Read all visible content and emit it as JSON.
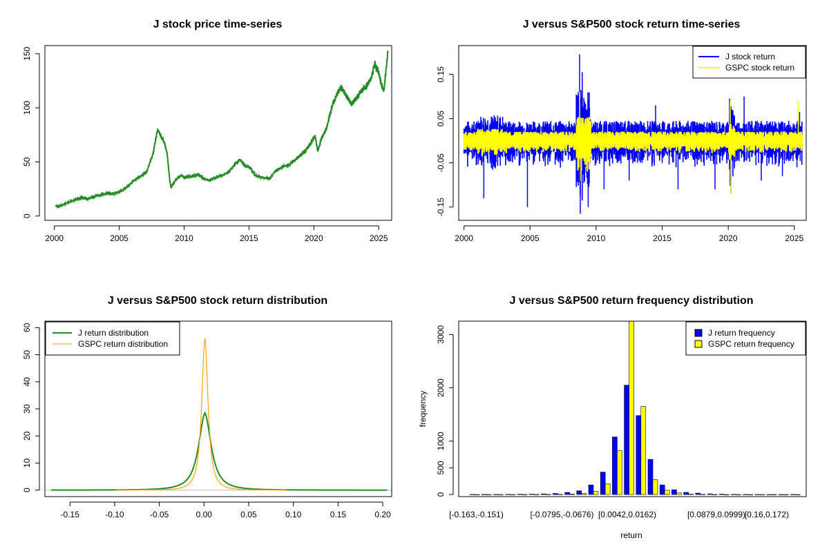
{
  "chart_data": [
    {
      "id": "p1",
      "type": "line",
      "title": "J stock price time-series",
      "xlabel": "",
      "ylabel": "",
      "xlim": [
        1999.6,
        2025.9
      ],
      "ylim": [
        -2,
        157
      ],
      "x_ticks": [
        2000,
        2005,
        2010,
        2015,
        2020,
        2025
      ],
      "y_ticks": [
        0,
        50,
        100,
        150
      ],
      "y_tick_orientation": "rotated",
      "color": "#228B22",
      "series": [
        {
          "x": [
            2000.0,
            2000.5,
            2001.0,
            2001.5,
            2002.0,
            2002.5,
            2003.0,
            2003.5,
            2004.0,
            2004.5,
            2005.0,
            2005.5,
            2006.0,
            2006.5,
            2007.0,
            2007.5,
            2007.85,
            2008.1,
            2008.4,
            2008.6,
            2008.8,
            2008.9,
            2009.2,
            2009.6,
            2010.0,
            2010.5,
            2011.0,
            2011.4,
            2011.8,
            2012.3,
            2012.8,
            2013.3,
            2013.8,
            2014.2,
            2014.6,
            2015.0,
            2015.4,
            2015.9,
            2016.5,
            2017.0,
            2017.5,
            2018.0,
            2018.5,
            2019.0,
            2019.5,
            2020.0,
            2020.2,
            2020.5,
            2020.9,
            2021.3,
            2021.7,
            2022.0,
            2022.4,
            2022.8,
            2023.2,
            2023.6,
            2024.0,
            2024.3,
            2024.6,
            2024.9,
            2025.1,
            2025.3,
            2025.6
          ],
          "values": [
            6,
            7,
            10,
            12,
            14,
            13,
            15,
            17,
            18,
            18,
            20,
            24,
            30,
            34,
            38,
            55,
            78,
            72,
            65,
            55,
            30,
            24,
            30,
            35,
            33,
            34,
            36,
            32,
            30,
            33,
            35,
            38,
            45,
            50,
            44,
            42,
            35,
            33,
            32,
            40,
            43,
            45,
            50,
            55,
            62,
            72,
            58,
            70,
            80,
            100,
            112,
            118,
            110,
            102,
            108,
            115,
            120,
            125,
            140,
            132,
            120,
            115,
            150
          ]
        }
      ]
    },
    {
      "id": "p2",
      "type": "line",
      "title": "J versus S&P500 stock return time-series",
      "xlabel": "",
      "ylabel": "",
      "xlim": [
        1999.6,
        2025.9
      ],
      "ylim": [
        -0.18,
        0.215
      ],
      "x_ticks": [
        2000,
        2005,
        2010,
        2015,
        2020,
        2025
      ],
      "y_ticks": [
        -0.15,
        -0.05,
        0.05,
        0.15
      ],
      "y_tick_labels": [
        "-0.15",
        "-0.05",
        "0.05",
        "0.15"
      ],
      "legend": {
        "position": "top-right",
        "entries": [
          "J stock return",
          "GSPC stock return"
        ]
      },
      "series": [
        {
          "name": "J stock return",
          "color": "#0000FF",
          "spikes": [
            [
              2001.5,
              -0.13
            ],
            [
              2004.8,
              -0.15
            ],
            [
              2008.75,
              0.195
            ],
            [
              2008.8,
              -0.165
            ],
            [
              2008.95,
              0.155
            ],
            [
              2009.4,
              -0.15
            ],
            [
              2010.6,
              -0.11
            ],
            [
              2012.5,
              -0.09
            ],
            [
              2014.5,
              0.08
            ],
            [
              2016.2,
              -0.11
            ],
            [
              2019.0,
              -0.11
            ],
            [
              2020.1,
              0.095
            ],
            [
              2020.2,
              -0.12
            ],
            [
              2021.2,
              0.1
            ],
            [
              2022.5,
              -0.09
            ],
            [
              2024.1,
              -0.08
            ],
            [
              2025.2,
              -0.06
            ],
            [
              2025.4,
              0.065
            ]
          ]
        },
        {
          "name": "GSPC stock return",
          "color": "#FFFF00",
          "spikes": [
            [
              2008.75,
              0.11
            ],
            [
              2008.85,
              -0.09
            ],
            [
              2020.15,
              0.09
            ],
            [
              2020.2,
              -0.12
            ],
            [
              2025.3,
              0.09
            ]
          ]
        }
      ]
    },
    {
      "id": "p3",
      "type": "line",
      "title": "J versus S&P500 stock return distribution",
      "xlabel": "",
      "ylabel": "",
      "xlim": [
        -0.178,
        0.21
      ],
      "ylim": [
        -2.4,
        62.4
      ],
      "x_ticks": [
        -0.15,
        -0.1,
        -0.05,
        0.0,
        0.05,
        0.1,
        0.15,
        0.2
      ],
      "x_tick_labels": [
        "-0.15",
        "-0.10",
        "-0.05",
        "0.00",
        "0.05",
        "0.10",
        "0.15",
        "0.20"
      ],
      "y_ticks": [
        0,
        10,
        20,
        30,
        40,
        50,
        60
      ],
      "legend": {
        "position": "top-left",
        "entries": [
          "J return distribution",
          "GSPC return distribution"
        ]
      },
      "series": [
        {
          "name": "J return distribution",
          "color": "#228B22",
          "peak_x": 0.001,
          "peak_y": 28.5,
          "x_range": [
            -0.171,
            0.205
          ],
          "scale": 0.0068
        },
        {
          "name": "GSPC return distribution",
          "color": "#FFA500",
          "peak_x": 0.001,
          "peak_y": 56.5,
          "x_range": [
            -0.098,
            0.093
          ],
          "scale": 0.0034
        }
      ]
    },
    {
      "id": "p4",
      "type": "bar",
      "title": "J versus S&P500 return frequency distribution",
      "xlabel": "return",
      "ylabel": "frequency",
      "ylim": [
        0,
        3250
      ],
      "y_ticks": [
        0,
        500,
        1000,
        2000,
        3000
      ],
      "x_tick_labels": [
        "[-0.163,-0.151)",
        "[-0.0795,-0.0676)",
        "[0.0042,0.0162)",
        "[0.0879,0.0999)",
        "[0.16,0.172)"
      ],
      "legend": {
        "position": "top-right",
        "entries": [
          "J return frequency",
          "GSPC return frequency"
        ]
      },
      "categories_count": 28,
      "series": [
        {
          "name": "J return frequency",
          "color": "#0000FF",
          "values": [
            2,
            2,
            2,
            4,
            6,
            8,
            12,
            20,
            40,
            70,
            180,
            420,
            1080,
            2050,
            1480,
            660,
            180,
            90,
            40,
            25,
            12,
            8,
            4,
            3,
            2,
            1,
            1,
            2
          ]
        },
        {
          "name": "GSPC return frequency",
          "color": "#FFFF00",
          "values": [
            0,
            0,
            0,
            0,
            1,
            2,
            3,
            5,
            10,
            20,
            60,
            200,
            820,
            3250,
            1650,
            280,
            80,
            30,
            10,
            4,
            2,
            0,
            0,
            0,
            0,
            0,
            0,
            0
          ]
        }
      ]
    }
  ]
}
